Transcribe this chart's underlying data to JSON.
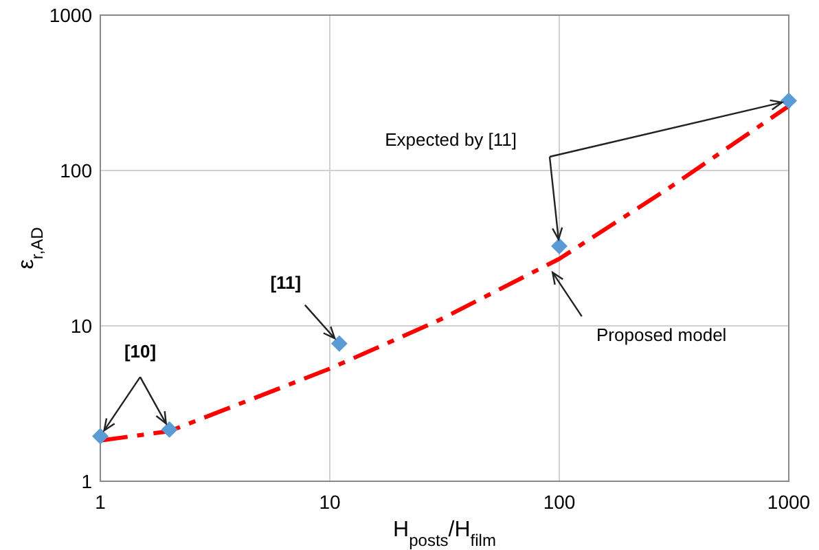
{
  "chart_data": {
    "type": "scatter",
    "xlabel": "H$_{posts}$/H$_{film}$",
    "ylabel": "ε$_{r,AD}$",
    "log": "xy",
    "xlim": [
      1,
      1000
    ],
    "ylim": [
      1,
      1000
    ],
    "xticks": [
      1,
      10,
      100,
      1000
    ],
    "yticks": [
      1,
      10,
      100,
      1000
    ],
    "grid": true,
    "series": [
      {
        "color": "#5b9bd5",
        "marker": "diamond",
        "x": [
          1,
          2,
          11,
          100,
          1000
        ],
        "values": [
          1.95,
          2.15,
          7.7,
          32.6,
          281
        ]
      },
      {
        "type": "line",
        "color": "#ff0000",
        "line_style": "dashed",
        "marker": "none",
        "x": [
          1,
          2,
          10,
          30,
          100,
          300,
          1000
        ],
        "values": [
          1.83,
          2.1,
          5.3,
          10.9,
          27,
          77,
          260
        ]
      }
    ],
    "annotations": [
      {
        "text": "[10]",
        "x": 1,
        "y": 1.95
      },
      {
        "text": "[11]",
        "x": 11,
        "y": 7.7
      },
      "Expected by [11]",
      {
        "text": "Proposed model",
        "x": 90,
        "y": 24
      }
    ]
  }
}
